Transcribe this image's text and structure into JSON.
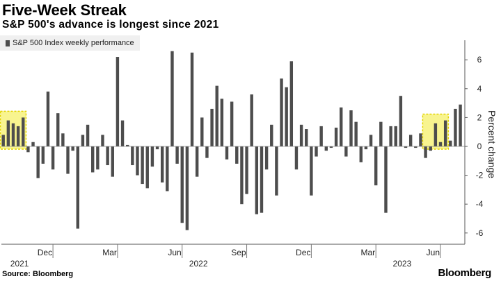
{
  "title": "Five-Week Streak",
  "subtitle": "S&P 500's advance is longest since 2021",
  "source": "Source: Bloomberg",
  "brand": "Bloomberg",
  "chart_data": {
    "type": "bar",
    "legend": "S&P 500 Index weekly performance",
    "ylabel": "Percent change",
    "ylim": [
      -7,
      8
    ],
    "yticks": [
      6,
      4,
      2,
      0,
      -2,
      -4,
      -6
    ],
    "xtick_labels": [
      {
        "label": "Dec",
        "week": 10
      },
      {
        "label": "Mar",
        "week": 23
      },
      {
        "label": "Jun",
        "week": 36
      },
      {
        "label": "Sep",
        "week": 49
      },
      {
        "label": "Dec",
        "week": 62
      },
      {
        "label": "Mar",
        "week": 75
      },
      {
        "label": "Jun",
        "week": 88
      }
    ],
    "year_labels": [
      {
        "label": "2021",
        "week": 3
      },
      {
        "label": "2022",
        "week": 39
      },
      {
        "label": "2023",
        "week": 80
      }
    ],
    "highlights": [
      {
        "from_week": 0,
        "to_week": 4
      },
      {
        "from_week": 85,
        "to_week": 89
      }
    ],
    "highlight_color": "#f5f06a",
    "bar_color": "#4d4d4d",
    "values": [
      0.8,
      1.8,
      1.6,
      1.4,
      2.0,
      -0.4,
      0.3,
      -2.2,
      -1.2,
      3.8,
      -1.6,
      2.3,
      0.9,
      -1.9,
      -0.3,
      -5.7,
      0.8,
      1.5,
      -1.8,
      -1.6,
      0.8,
      -1.3,
      -2.1,
      6.2,
      1.8,
      0.1,
      -1.3,
      -2.0,
      -2.6,
      -2.9,
      -1.4,
      -0.2,
      -2.5,
      -3.1,
      6.6,
      -1.2,
      -5.3,
      -5.8,
      6.5,
      -2.1,
      2.0,
      -0.8,
      2.6,
      4.2,
      3.3,
      -0.9,
      3.1,
      -1.2,
      -4.0,
      -3.3,
      3.6,
      -4.7,
      -4.6,
      -1.6,
      1.5,
      -3.4,
      4.7,
      4.1,
      5.9,
      -1.6,
      1.5,
      1.2,
      -3.4,
      -0.7,
      1.4,
      -0.3,
      -0.1,
      1.3,
      2.7,
      -0.7,
      2.5,
      1.7,
      -1.1,
      -0.2,
      0.8,
      -2.7,
      1.7,
      -4.6,
      1.4,
      1.4,
      3.5,
      -0.1,
      0.8,
      -0.1,
      0.9,
      -0.8,
      -0.3,
      1.6,
      0.3,
      1.8,
      0.4,
      2.6,
      2.9
    ]
  }
}
